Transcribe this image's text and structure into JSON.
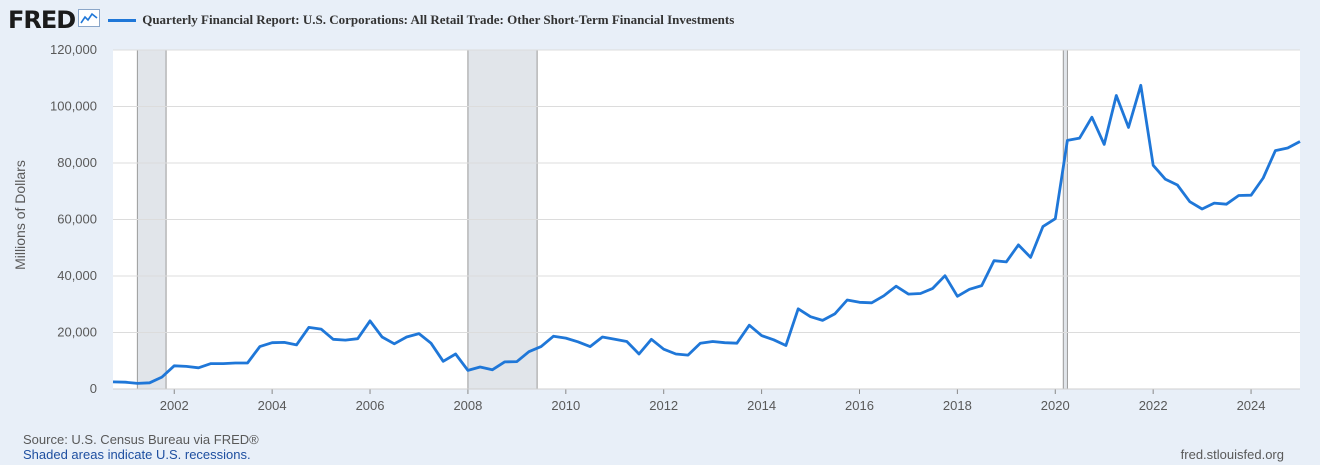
{
  "header": {
    "logo_text": "FRED",
    "logo_icon": "trend-chart-icon",
    "series_title": "Quarterly Financial Report: U.S. Corporations: All Retail Trade: Other Short-Term Financial Investments"
  },
  "footer": {
    "source": "Source: U.S. Census Bureau via FRED®",
    "recession_note": "Shaded areas indicate U.S. recessions.",
    "site": "fred.stlouisfed.org"
  },
  "colors": {
    "line": "#1f77d8",
    "plot_bg": "#ffffff",
    "page_bg": "#e8eff8",
    "recession": "#e1e5ea",
    "grid": "#dcdcdc"
  },
  "chart_data": {
    "type": "line",
    "title": "Quarterly Financial Report: U.S. Corporations: All Retail Trade: Other Short-Term Financial Investments",
    "ylabel": "Millions of Dollars",
    "xlabel": "",
    "x_ticks": [
      "2002",
      "2004",
      "2006",
      "2008",
      "2010",
      "2012",
      "2014",
      "2016",
      "2018",
      "2020",
      "2022",
      "2024"
    ],
    "y_ticks": [
      "0",
      "20,000",
      "40,000",
      "60,000",
      "80,000",
      "100,000",
      "120,000"
    ],
    "ylim": [
      0,
      120000
    ],
    "xlim": [
      "2000-10-01",
      "2025-01-01"
    ],
    "grid": true,
    "recessions": [
      [
        "2001-04-01",
        "2001-11-01"
      ],
      [
        "2008-01-01",
        "2009-06-01"
      ],
      [
        "2020-03-01",
        "2020-04-01"
      ]
    ],
    "series": [
      {
        "name": "Quarterly Financial Report: U.S. Corporations: All Retail Trade: Other Short-Term Financial Investments",
        "x": [
          "2000-10-01",
          "2001-01-01",
          "2001-04-01",
          "2001-07-01",
          "2001-10-01",
          "2002-01-01",
          "2002-04-01",
          "2002-07-01",
          "2002-10-01",
          "2003-01-01",
          "2003-04-01",
          "2003-07-01",
          "2003-10-01",
          "2004-01-01",
          "2004-04-01",
          "2004-07-01",
          "2004-10-01",
          "2005-01-01",
          "2005-04-01",
          "2005-07-01",
          "2005-10-01",
          "2006-01-01",
          "2006-04-01",
          "2006-07-01",
          "2006-10-01",
          "2007-01-01",
          "2007-04-01",
          "2007-07-01",
          "2007-10-01",
          "2008-01-01",
          "2008-04-01",
          "2008-07-01",
          "2008-10-01",
          "2009-01-01",
          "2009-04-01",
          "2009-07-01",
          "2009-10-01",
          "2010-01-01",
          "2010-04-01",
          "2010-07-01",
          "2010-10-01",
          "2011-01-01",
          "2011-04-01",
          "2011-07-01",
          "2011-10-01",
          "2012-01-01",
          "2012-04-01",
          "2012-07-01",
          "2012-10-01",
          "2013-01-01",
          "2013-04-01",
          "2013-07-01",
          "2013-10-01",
          "2014-01-01",
          "2014-04-01",
          "2014-07-01",
          "2014-10-01",
          "2015-01-01",
          "2015-04-01",
          "2015-07-01",
          "2015-10-01",
          "2016-01-01",
          "2016-04-01",
          "2016-07-01",
          "2016-10-01",
          "2017-01-01",
          "2017-04-01",
          "2017-07-01",
          "2017-10-01",
          "2018-01-01",
          "2018-04-01",
          "2018-07-01",
          "2018-10-01",
          "2019-01-01",
          "2019-04-01",
          "2019-07-01",
          "2019-10-01",
          "2020-01-01",
          "2020-04-01",
          "2020-07-01",
          "2020-10-01",
          "2021-01-01",
          "2021-04-01",
          "2021-07-01",
          "2021-10-01",
          "2022-01-01",
          "2022-04-01",
          "2022-07-01",
          "2022-10-01",
          "2023-01-01",
          "2023-04-01",
          "2023-07-01",
          "2023-10-01",
          "2024-01-01",
          "2024-04-01",
          "2024-07-01",
          "2024-10-01",
          "2025-01-01"
        ],
        "values": [
          2500,
          2400,
          2000,
          2200,
          4200,
          8200,
          8000,
          7500,
          9000,
          9000,
          9200,
          9200,
          15000,
          16400,
          16500,
          15600,
          21800,
          21200,
          17600,
          17300,
          17800,
          24100,
          18400,
          16000,
          18400,
          19600,
          16200,
          9800,
          12400,
          6600,
          7800,
          6800,
          9600,
          9700,
          13200,
          15000,
          18700,
          18000,
          16700,
          15000,
          18400,
          17600,
          16800,
          12400,
          17600,
          14100,
          12400,
          12000,
          16200,
          16800,
          16400,
          16200,
          22600,
          18900,
          17400,
          15400,
          28400,
          25600,
          24300,
          26600,
          31500,
          30700,
          30500,
          33000,
          36400,
          33600,
          33800,
          35600,
          40100,
          32800,
          35300,
          36600,
          45400,
          45000,
          51000,
          46600,
          57500,
          60300,
          88000,
          88800,
          96200,
          86600,
          103900,
          92600,
          107500,
          79200,
          74300,
          72200,
          66300,
          63700,
          65800,
          65400,
          68500,
          68600,
          74700,
          84400,
          85300,
          87600
        ]
      }
    ]
  }
}
